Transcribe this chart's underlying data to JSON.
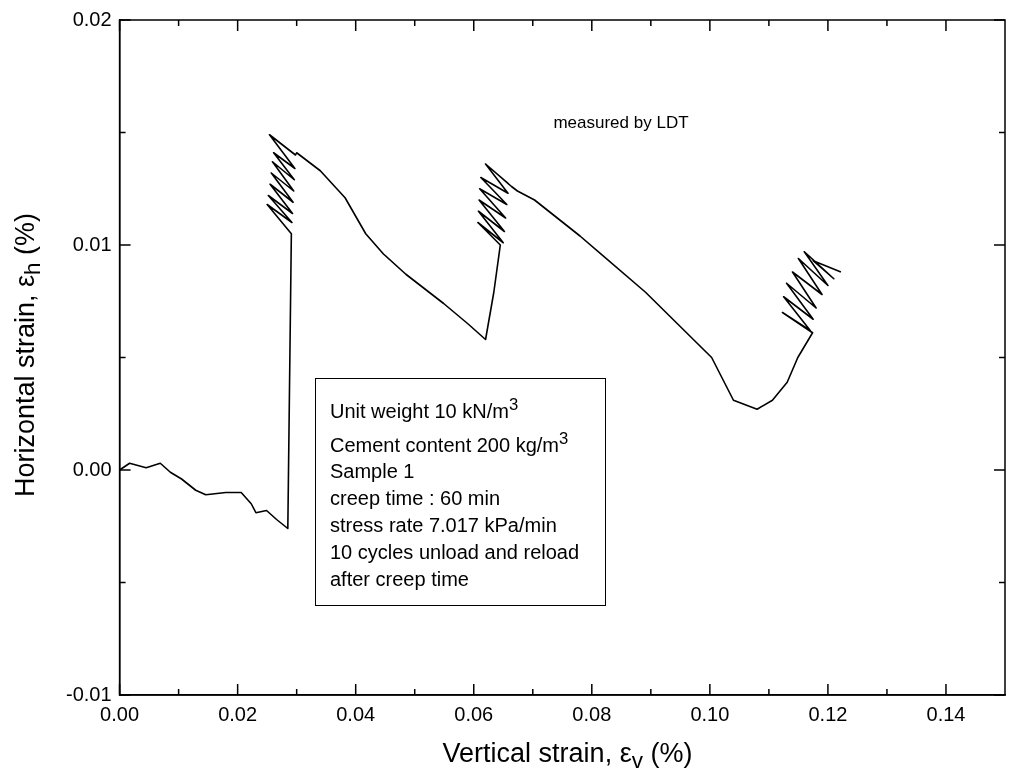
{
  "chart_data": {
    "type": "line",
    "xlabel": "Vertical strain, ε$_{v}$ (%)",
    "ylabel": "Horizontal strain, ε$_{h}$ (%)",
    "xlim": [
      0,
      0.15
    ],
    "ylim": [
      -0.01,
      0.02
    ],
    "xticks": [
      {
        "value": 0,
        "label": "0.00"
      },
      {
        "value": 0.01,
        "label": null
      },
      {
        "value": 0.02,
        "label": "0.02"
      },
      {
        "value": 0.03,
        "label": null
      },
      {
        "value": 0.04,
        "label": "0.04"
      },
      {
        "value": 0.05,
        "label": null
      },
      {
        "value": 0.06,
        "label": "0.06"
      },
      {
        "value": 0.07,
        "label": null
      },
      {
        "value": 0.08,
        "label": "0.08"
      },
      {
        "value": 0.09,
        "label": null
      },
      {
        "value": 0.1,
        "label": "0.10"
      },
      {
        "value": 0.11,
        "label": null
      },
      {
        "value": 0.12,
        "label": "0.12"
      },
      {
        "value": 0.13,
        "label": null
      },
      {
        "value": 0.14,
        "label": "0.14"
      }
    ],
    "yticks": [
      {
        "value": -0.01,
        "label": "-0.01"
      },
      {
        "value": -0.005,
        "label": null
      },
      {
        "value": 0,
        "label": "0.00"
      },
      {
        "value": 0.005,
        "label": null
      },
      {
        "value": 0.01,
        "label": "0.01"
      },
      {
        "value": 0.015,
        "label": null
      },
      {
        "value": 0.02,
        "label": "0.02"
      }
    ],
    "annotations": [
      "measured by LDT",
      "Unit weight 10 kN/m$^{3}$",
      "Cement content 200 kg/m$^{3}$",
      "Sample 1",
      "creep time : 60 min",
      "stress rate 7.017 kPa/min",
      "10 cycles unload and reload",
      "after creep time"
    ],
    "series": [
      {
        "color": "#000000",
        "x": [
          0,
          0.0017,
          0.0045,
          0.0069,
          0.0086,
          0.0105,
          0.0129,
          0.0146,
          0.018,
          0.0206,
          0.0223,
          0.0231,
          0.0249,
          0.0266,
          0.0285,
          0.0291,
          0.025,
          0.0292,
          0.0252,
          0.0293,
          0.0255,
          0.0294,
          0.0257,
          0.0295,
          0.0259,
          0.0296,
          0.0261,
          0.0297,
          0.0254,
          0.0298,
          0.03,
          0.034,
          0.0382,
          0.0417,
          0.0447,
          0.0485,
          0.0549,
          0.059,
          0.062,
          0.0634,
          0.0645,
          0.0607,
          0.065,
          0.0608,
          0.0652,
          0.0609,
          0.0654,
          0.061,
          0.0656,
          0.0612,
          0.0658,
          0.062,
          0.0664,
          0.0674,
          0.0703,
          0.078,
          0.0891,
          0.1003,
          0.104,
          0.108,
          0.1106,
          0.1131,
          0.1149,
          0.1174,
          0.1123,
          0.117,
          0.1125,
          0.1175,
          0.113,
          0.118,
          0.114,
          0.119,
          0.115,
          0.12,
          0.116,
          0.121,
          0.1175,
          0.1222
        ],
        "values": [
          0,
          0.0003,
          0.0001,
          0.0003,
          -0.0001,
          -0.0004,
          -0.0009,
          -0.0011,
          -0.001,
          -0.001,
          -0.0015,
          -0.0019,
          -0.0018,
          -0.0022,
          -0.0026,
          0.0105,
          0.0118,
          0.011,
          0.0122,
          0.0114,
          0.0127,
          0.0119,
          0.0132,
          0.0124,
          0.0137,
          0.0129,
          0.0141,
          0.0134,
          0.0149,
          0.014,
          0.0141,
          0.0133,
          0.0121,
          0.0105,
          0.0096,
          0.0087,
          0.0074,
          0.0065,
          0.0058,
          0.0079,
          0.01,
          0.011,
          0.0101,
          0.0115,
          0.0106,
          0.012,
          0.0112,
          0.0125,
          0.0118,
          0.013,
          0.0123,
          0.0136,
          0.0126,
          0.0124,
          0.012,
          0.0104,
          0.0079,
          0.005,
          0.0031,
          0.0027,
          0.0031,
          0.0039,
          0.005,
          0.0061,
          0.007,
          0.0062,
          0.0077,
          0.0067,
          0.0083,
          0.0072,
          0.0088,
          0.0078,
          0.0094,
          0.0082,
          0.0097,
          0.0085,
          0.0093,
          0.0088
        ]
      }
    ]
  }
}
